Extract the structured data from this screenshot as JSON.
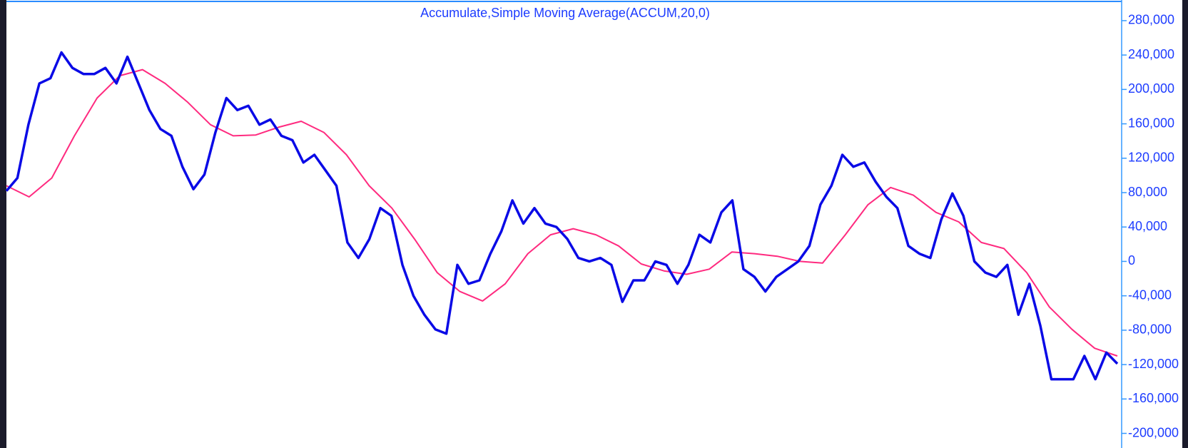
{
  "chart_data": {
    "type": "line",
    "title": "Accumulate,Simple Moving Average(ACCUM,20,0)",
    "ylim": [
      -217000,
      304000
    ],
    "yticks": [
      {
        "value": -200000,
        "label": "-200,000"
      },
      {
        "value": -160000,
        "label": "-160,000"
      },
      {
        "value": -120000,
        "label": "-120,000"
      },
      {
        "value": -80000,
        "label": "-80,000"
      },
      {
        "value": -40000,
        "label": "-40,000"
      },
      0,
      {
        "value": 40000,
        "label": "40,000"
      },
      {
        "value": 80000,
        "label": "80,000"
      },
      {
        "value": 120000,
        "label": "120,000"
      },
      {
        "value": 160000,
        "label": "160,000"
      },
      {
        "value": 200000,
        "label": "200,000"
      },
      {
        "value": 240000,
        "label": "240,000"
      },
      {
        "value": 280000,
        "label": "280,000"
      }
    ],
    "series": [
      {
        "color": "#0a0ae6",
        "values": [
          82000,
          97000,
          159000,
          207000,
          213000,
          243000,
          225000,
          218000,
          218000,
          225000,
          207000,
          238000,
          207000,
          176000,
          154000,
          146000,
          110000,
          84000,
          101000,
          150000,
          190000,
          176000,
          181000,
          159000,
          165000,
          146000,
          141000,
          115000,
          124000,
          106000,
          88000,
          22000,
          4000,
          26000,
          62000,
          53000,
          -4000,
          -40000,
          -62000,
          -79000,
          -84000,
          -4000,
          -26000,
          -22000,
          9000,
          35000,
          71000,
          44000,
          62000,
          44000,
          40000,
          26000,
          4000,
          0,
          4000,
          -4000,
          -47000,
          -22000,
          -22000,
          0,
          -4000,
          -26000,
          -4000,
          31000,
          22000,
          57000,
          71000,
          -9000,
          -18000,
          -35000,
          -18000,
          -9000,
          0,
          18000,
          66000,
          88000,
          124000,
          110000,
          115000,
          93000,
          75000,
          62000,
          18000,
          9000,
          4000,
          49000,
          79000,
          53000,
          0,
          -13000,
          -18000,
          -4000,
          -62000,
          -26000,
          -75000,
          -137000,
          -137000,
          -137000,
          -110000,
          -137000,
          -106000,
          -119000
        ]
      },
      {
        "color": "#ff2a7f",
        "values": [
          88000,
          75000,
          97000,
          146000,
          190000,
          216000,
          223000,
          207000,
          185000,
          159000,
          146000,
          147000,
          156000,
          163000,
          150000,
          124000,
          88000,
          62000,
          26000,
          -13000,
          -35000,
          -46000,
          -26000,
          9000,
          31000,
          38000,
          31000,
          18000,
          -3000,
          -11000,
          -15000,
          -9000,
          11000,
          9000,
          6000,
          0,
          -2000,
          31000,
          66000,
          86000,
          77000,
          57000,
          46000,
          22000,
          15000,
          -13000,
          -53000,
          -79000,
          -101000,
          -110000
        ]
      }
    ]
  }
}
